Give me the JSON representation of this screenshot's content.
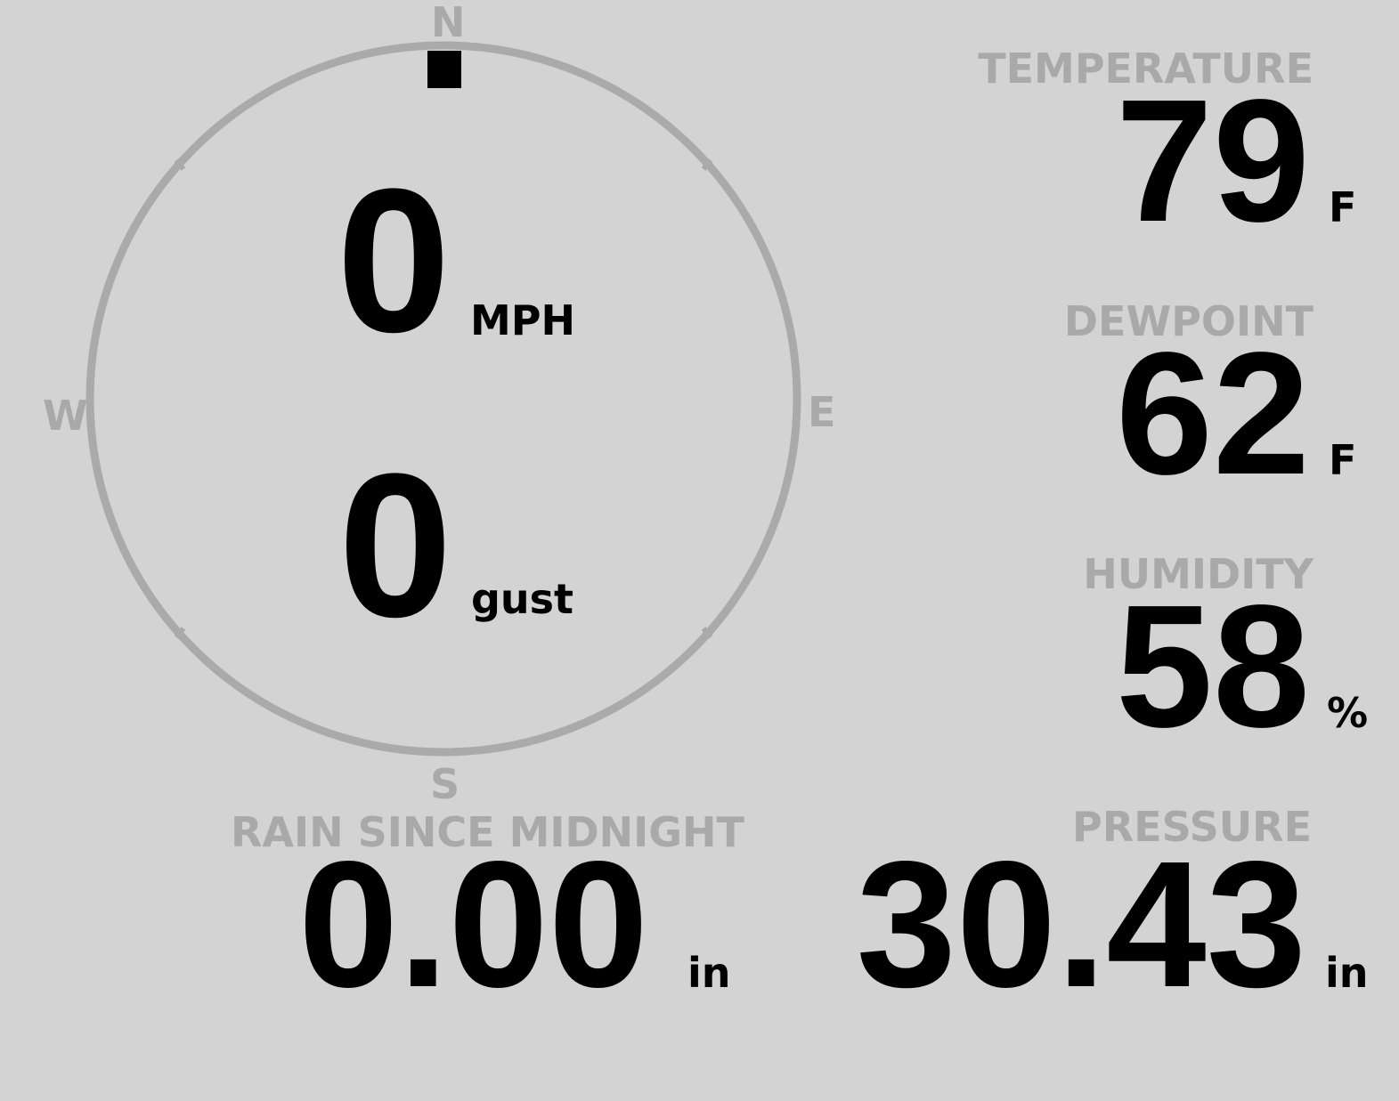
{
  "compass": {
    "north": "N",
    "south": "S",
    "east": "E",
    "west": "W",
    "direction_degrees": 0,
    "ring_color": "#aaaaaa"
  },
  "wind": {
    "speed": "0",
    "speed_unit": "MPH",
    "gust": "0",
    "gust_unit": "gust"
  },
  "temperature": {
    "label": "TEMPERATURE",
    "value": "79",
    "unit": "F"
  },
  "dewpoint": {
    "label": "DEWPOINT",
    "value": "62",
    "unit": "F"
  },
  "humidity": {
    "label": "HUMIDITY",
    "value": "58",
    "unit": "%"
  },
  "rain": {
    "label": "RAIN SINCE MIDNIGHT",
    "value": "0.00",
    "unit": "in"
  },
  "pressure": {
    "label": "PRESSURE",
    "value": "30.43",
    "unit": "in"
  }
}
